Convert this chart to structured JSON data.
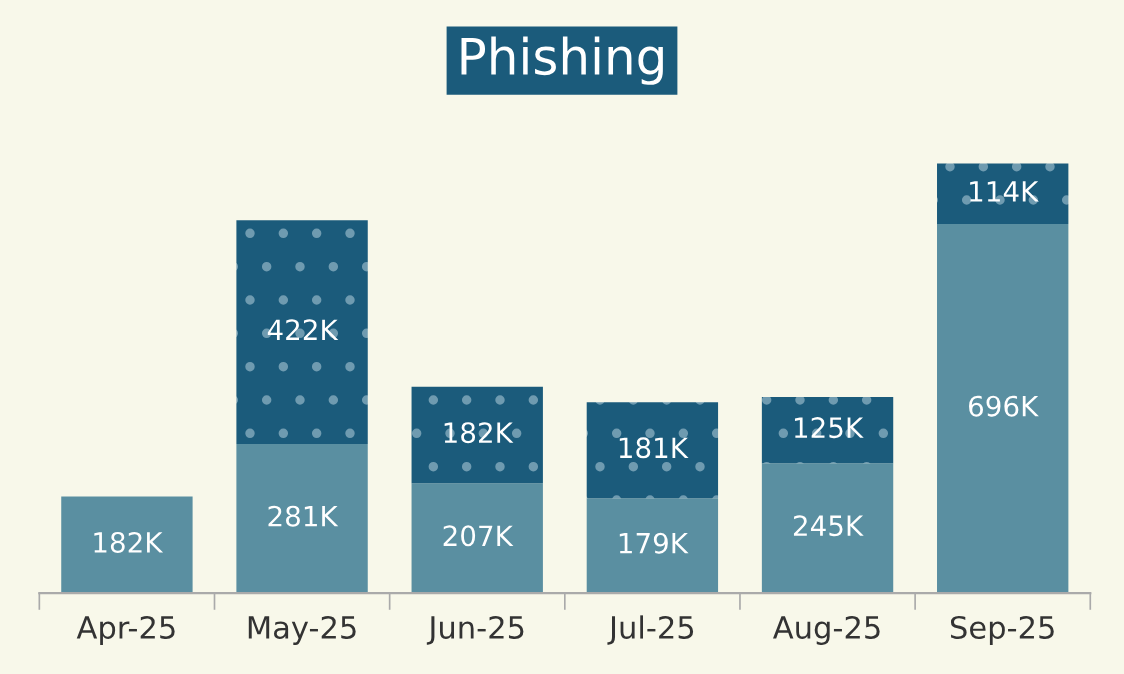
{
  "chart_data": {
    "type": "bar",
    "title": "Phishing",
    "stacked": true,
    "categories": [
      "Apr-25",
      "May-25",
      "Jun-25",
      "Jul-25",
      "Aug-25",
      "Sep-25"
    ],
    "series": [
      {
        "color": "#5a8fa1",
        "values": [
          182,
          281,
          207,
          179,
          245,
          696
        ],
        "value_labels": [
          "182K",
          "281K",
          "207K",
          "179K",
          "245K",
          "696K"
        ]
      },
      {
        "color": "#1b5b7b",
        "values": [
          null,
          422,
          182,
          181,
          125,
          114
        ],
        "value_labels": [
          null,
          "422K",
          "182K",
          "181K",
          "125K",
          "114K"
        ]
      }
    ],
    "grid": false,
    "legend": false,
    "tick_labels": "x"
  }
}
